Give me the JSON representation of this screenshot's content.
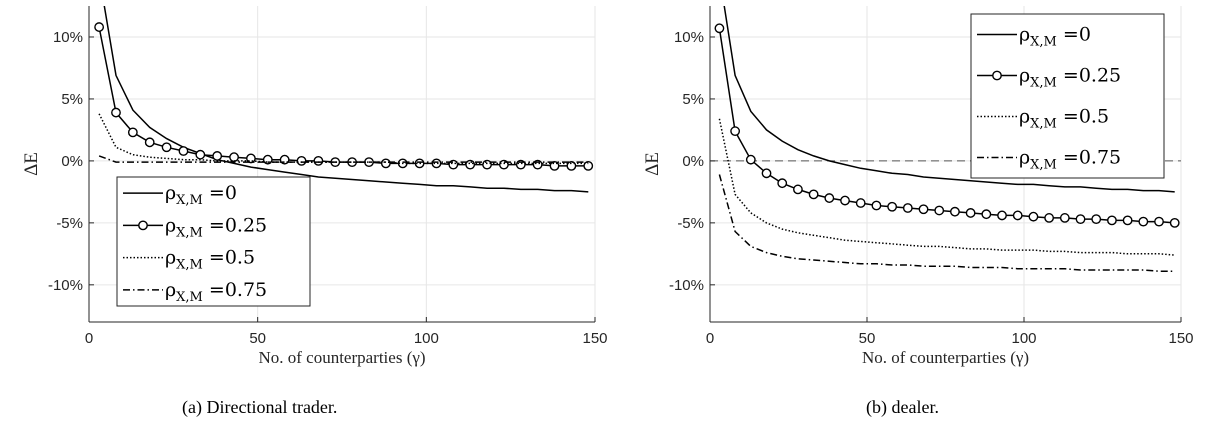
{
  "colors": {
    "line": "#000000",
    "grid": "#e6e6e6",
    "axis": "#262626",
    "box": "#262626"
  },
  "chart_data": [
    {
      "type": "line",
      "caption": "(a) Directional trader.",
      "xlabel": "No. of counterparties (γ)",
      "ylabel": "ΔE",
      "xlim": [
        0,
        150
      ],
      "ylim": [
        -0.13,
        0.125
      ],
      "xticks": [
        "0",
        "50",
        "100",
        "150"
      ],
      "yticks": [
        "10%",
        "5%",
        "0%",
        "-5%",
        "-10%"
      ],
      "grid": true,
      "zero_line": false,
      "legend_position": "lower-left",
      "x": [
        3,
        8,
        13,
        18,
        23,
        28,
        33,
        38,
        43,
        48,
        53,
        58,
        63,
        68,
        73,
        78,
        83,
        88,
        93,
        98,
        103,
        108,
        113,
        118,
        123,
        128,
        133,
        138,
        143,
        148
      ],
      "series": [
        {
          "name": "ρX,M =0",
          "label_main": "ρ",
          "label_sub": "X,M",
          "label_val": " =0",
          "style": "solid",
          "values": [
            0.15,
            0.069,
            0.041,
            0.027,
            0.018,
            0.011,
            0.006,
            0.001,
            -0.002,
            -0.005,
            -0.007,
            -0.009,
            -0.011,
            -0.013,
            -0.014,
            -0.015,
            -0.016,
            -0.017,
            -0.018,
            -0.019,
            -0.02,
            -0.02,
            -0.021,
            -0.022,
            -0.022,
            -0.023,
            -0.023,
            -0.024,
            -0.024,
            -0.025
          ]
        },
        {
          "name": "ρX,M =0.25",
          "label_main": "ρ",
          "label_sub": "X,M",
          "label_val": " =0.25",
          "style": "circle",
          "values": [
            0.108,
            0.039,
            0.023,
            0.015,
            0.011,
            0.008,
            0.005,
            0.004,
            0.003,
            0.002,
            0.001,
            0.001,
            0.0,
            0.0,
            -0.001,
            -0.001,
            -0.001,
            -0.002,
            -0.002,
            -0.002,
            -0.002,
            -0.003,
            -0.003,
            -0.003,
            -0.003,
            -0.003,
            -0.003,
            -0.004,
            -0.004,
            -0.004
          ]
        },
        {
          "name": "ρX,M =0.5",
          "label_main": "ρ",
          "label_sub": "X,M",
          "label_val": " =0.5",
          "style": "dotted",
          "values": [
            0.038,
            0.011,
            0.005,
            0.003,
            0.002,
            0.001,
            0.001,
            0.0,
            0.0,
            0.0,
            -0.001,
            -0.001,
            -0.001,
            -0.001,
            -0.001,
            -0.001,
            -0.001,
            -0.001,
            -0.002,
            -0.002,
            -0.002,
            -0.002,
            -0.002,
            -0.002,
            -0.002,
            -0.002,
            -0.002,
            -0.002,
            -0.002,
            -0.002
          ]
        },
        {
          "name": "ρX,M =0.75",
          "label_main": "ρ",
          "label_sub": "X,M",
          "label_val": " =0.75",
          "style": "dashdot",
          "values": [
            0.004,
            -0.001,
            -0.001,
            -0.001,
            -0.001,
            -0.001,
            -0.001,
            -0.001,
            -0.001,
            -0.001,
            -0.001,
            -0.001,
            -0.001,
            -0.001,
            -0.001,
            -0.001,
            -0.001,
            -0.001,
            -0.001,
            -0.001,
            -0.001,
            -0.001,
            -0.001,
            -0.001,
            -0.001,
            -0.001,
            -0.001,
            -0.001,
            -0.001,
            -0.001
          ]
        }
      ]
    },
    {
      "type": "line",
      "caption": "(b) dealer.",
      "xlabel": "No. of counterparties (γ)",
      "ylabel": "ΔE",
      "xlim": [
        0,
        150
      ],
      "ylim": [
        -0.13,
        0.125
      ],
      "xticks": [
        "0",
        "50",
        "100",
        "150"
      ],
      "yticks": [
        "10%",
        "5%",
        "0%",
        "-5%",
        "-10%"
      ],
      "grid": true,
      "zero_line": true,
      "legend_position": "top-right",
      "x": [
        3,
        8,
        13,
        18,
        23,
        28,
        33,
        38,
        43,
        48,
        53,
        58,
        63,
        68,
        73,
        78,
        83,
        88,
        93,
        98,
        103,
        108,
        113,
        118,
        123,
        128,
        133,
        138,
        143,
        148
      ],
      "series": [
        {
          "name": "ρX,M =0",
          "label_main": "ρ",
          "label_sub": "X,M",
          "label_val": " =0",
          "style": "solid",
          "values": [
            0.15,
            0.069,
            0.04,
            0.025,
            0.016,
            0.009,
            0.004,
            0.0,
            -0.003,
            -0.006,
            -0.008,
            -0.01,
            -0.011,
            -0.013,
            -0.014,
            -0.015,
            -0.016,
            -0.017,
            -0.018,
            -0.019,
            -0.019,
            -0.02,
            -0.021,
            -0.021,
            -0.022,
            -0.023,
            -0.023,
            -0.024,
            -0.024,
            -0.025
          ]
        },
        {
          "name": "ρX,M =0.25",
          "label_main": "ρ",
          "label_sub": "X,M",
          "label_val": " =0.25",
          "style": "circle",
          "values": [
            0.107,
            0.024,
            0.001,
            -0.01,
            -0.018,
            -0.023,
            -0.027,
            -0.03,
            -0.032,
            -0.034,
            -0.036,
            -0.037,
            -0.038,
            -0.039,
            -0.04,
            -0.041,
            -0.042,
            -0.043,
            -0.044,
            -0.044,
            -0.045,
            -0.046,
            -0.046,
            -0.047,
            -0.047,
            -0.048,
            -0.048,
            -0.049,
            -0.049,
            -0.05
          ]
        },
        {
          "name": "ρX,M =0.5",
          "label_main": "ρ",
          "label_sub": "X,M",
          "label_val": " =0.5",
          "style": "dotted",
          "values": [
            0.034,
            -0.027,
            -0.042,
            -0.05,
            -0.055,
            -0.058,
            -0.06,
            -0.062,
            -0.064,
            -0.065,
            -0.066,
            -0.067,
            -0.068,
            -0.069,
            -0.069,
            -0.07,
            -0.071,
            -0.071,
            -0.072,
            -0.072,
            -0.072,
            -0.073,
            -0.073,
            -0.074,
            -0.074,
            -0.074,
            -0.075,
            -0.075,
            -0.075,
            -0.076
          ]
        },
        {
          "name": "ρX,M =0.75",
          "label_main": "ρ",
          "label_sub": "X,M",
          "label_val": " =0.75",
          "style": "dashdot",
          "values": [
            -0.011,
            -0.057,
            -0.069,
            -0.074,
            -0.077,
            -0.079,
            -0.08,
            -0.081,
            -0.082,
            -0.083,
            -0.083,
            -0.084,
            -0.084,
            -0.085,
            -0.085,
            -0.085,
            -0.086,
            -0.086,
            -0.086,
            -0.087,
            -0.087,
            -0.087,
            -0.087,
            -0.088,
            -0.088,
            -0.088,
            -0.088,
            -0.088,
            -0.089,
            -0.089
          ]
        }
      ]
    }
  ]
}
